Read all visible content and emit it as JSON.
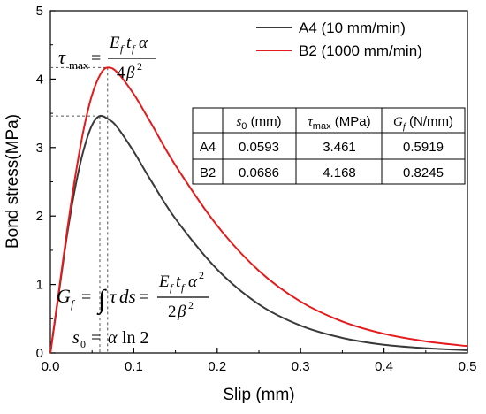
{
  "chart_data": {
    "type": "line",
    "xlabel": "Slip (mm)",
    "ylabel": "Bond stress(MPa)",
    "xlim": [
      0,
      0.5
    ],
    "ylim": [
      0,
      5
    ],
    "x_ticks": [
      "0.0",
      "0.1",
      "0.2",
      "0.3",
      "0.4",
      "0.5"
    ],
    "y_ticks": [
      "0",
      "1",
      "2",
      "3",
      "4",
      "5"
    ],
    "grid": false,
    "legend_position": "top-right",
    "series": [
      {
        "name": "A4 (10 mm/min)",
        "color": "#3a3a3a",
        "peak_x": 0.0593,
        "peak_y": 3.461,
        "x": [
          0.0,
          0.01,
          0.02,
          0.03,
          0.04,
          0.05,
          0.0593,
          0.07,
          0.08,
          0.1,
          0.12,
          0.15,
          0.2,
          0.25,
          0.3,
          0.35,
          0.4,
          0.45,
          0.5
        ],
        "y": [
          0.0,
          0.86,
          1.72,
          2.43,
          2.97,
          3.33,
          3.461,
          3.41,
          3.3,
          2.94,
          2.53,
          1.96,
          1.22,
          0.71,
          0.4,
          0.22,
          0.12,
          0.07,
          0.04
        ]
      },
      {
        "name": "B2 (1000 mm/min)",
        "color": "#e41a1c",
        "peak_x": 0.0686,
        "peak_y": 4.168,
        "x": [
          0.0,
          0.01,
          0.02,
          0.03,
          0.04,
          0.05,
          0.06,
          0.0686,
          0.08,
          0.1,
          0.12,
          0.15,
          0.2,
          0.25,
          0.3,
          0.35,
          0.4,
          0.45,
          0.5
        ],
        "y": [
          0.0,
          0.89,
          1.78,
          2.59,
          3.27,
          3.77,
          4.07,
          4.168,
          4.1,
          3.78,
          3.37,
          2.74,
          1.86,
          1.2,
          0.75,
          0.46,
          0.28,
          0.17,
          0.1
        ]
      }
    ],
    "table": {
      "headers": [
        "",
        "s0 (mm)",
        "τmax (MPa)",
        "Gf (N/mm)"
      ],
      "rows": [
        [
          "A4",
          "0.0593",
          "3.461",
          "0.5919"
        ],
        [
          "B2",
          "0.0686",
          "4.168",
          "0.8245"
        ]
      ]
    },
    "annotations": {
      "tau_max_lhs": "τmax =",
      "tau_max_numerator": "Ef tf α",
      "tau_max_denominator": "4β²",
      "gf_lhs": "Gf = ∫τds =",
      "gf_numerator": "Ef tf α²",
      "gf_denominator": "2β²",
      "s0_formula": "s0 = α ln 2"
    }
  }
}
